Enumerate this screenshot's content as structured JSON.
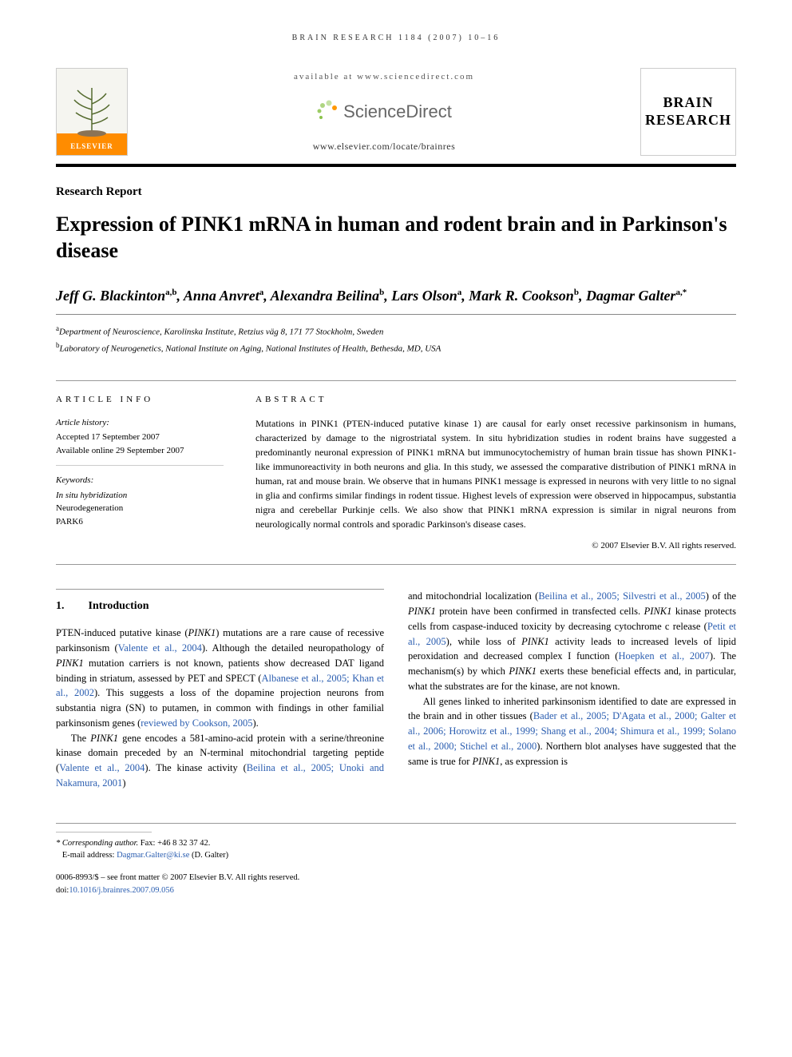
{
  "running_head": "BRAIN RESEARCH 1184 (2007) 10–16",
  "header": {
    "publisher_name": "ELSEVIER",
    "available_at": "available at www.sciencedirect.com",
    "sciencedirect_label": "ScienceDirect",
    "journal_url": "www.elsevier.com/locate/brainres",
    "journal_logo_line1": "BRAIN",
    "journal_logo_line2": "RESEARCH"
  },
  "article": {
    "type": "Research Report",
    "title": "Expression of PINK1 mRNA in human and rodent brain and in Parkinson's disease",
    "authors_html": "Jeff G. Blackinton<sup>a,b</sup>, Anna Anvret<sup>a</sup>, Alexandra Beilina<sup>b</sup>, Lars Olson<sup>a</sup>, Mark R. Cookson<sup>b</sup>, Dagmar Galter<sup>a,*</sup>",
    "affiliations": [
      {
        "sup": "a",
        "text": "Department of Neuroscience, Karolinska Institute, Retzius väg 8, 171 77 Stockholm, Sweden"
      },
      {
        "sup": "b",
        "text": "Laboratory of Neurogenetics, National Institute on Aging, National Institutes of Health, Bethesda, MD, USA"
      }
    ]
  },
  "article_info": {
    "heading": "ARTICLE INFO",
    "history_label": "Article history:",
    "accepted": "Accepted 17 September 2007",
    "available_online": "Available online 29 September 2007",
    "keywords_label": "Keywords:",
    "keywords": [
      "In situ hybridization",
      "Neurodegeneration",
      "PARK6"
    ]
  },
  "abstract": {
    "heading": "ABSTRACT",
    "text": "Mutations in PINK1 (PTEN-induced putative kinase 1) are causal for early onset recessive parkinsonism in humans, characterized by damage to the nigrostriatal system. In situ hybridization studies in rodent brains have suggested a predominantly neuronal expression of PINK1 mRNA but immunocytochemistry of human brain tissue has shown PINK1-like immunoreactivity in both neurons and glia. In this study, we assessed the comparative distribution of PINK1 mRNA in human, rat and mouse brain. We observe that in humans PINK1 message is expressed in neurons with very little to no signal in glia and confirms similar findings in rodent tissue. Highest levels of expression were observed in hippocampus, substantia nigra and cerebellar Purkinje cells. We also show that PINK1 mRNA expression is similar in nigral neurons from neurologically normal controls and sporadic Parkinson's disease cases.",
    "copyright": "© 2007 Elsevier B.V. All rights reserved."
  },
  "sections": {
    "intro_number": "1.",
    "intro_title": "Introduction",
    "col1_p1": "PTEN-induced putative kinase (PINK1) mutations are a rare cause of recessive parkinsonism (Valente et al., 2004). Although the detailed neuropathology of PINK1 mutation carriers is not known, patients show decreased DAT ligand binding in striatum, assessed by PET and SPECT (Albanese et al., 2005; Khan et al., 2002). This suggests a loss of the dopamine projection neurons from substantia nigra (SN) to putamen, in common with findings in other familial parkinsonism genes (reviewed by Cookson, 2005).",
    "col1_p2": "The PINK1 gene encodes a 581-amino-acid protein with a serine/threonine kinase domain preceded by an N-terminal mitochondrial targeting peptide (Valente et al., 2004). The kinase activity (Beilina et al., 2005; Unoki and Nakamura, 2001)",
    "col2_p1": "and mitochondrial localization (Beilina et al., 2005; Silvestri et al., 2005) of the PINK1 protein have been confirmed in transfected cells. PINK1 kinase protects cells from caspase-induced toxicity by decreasing cytochrome c release (Petit et al., 2005), while loss of PINK1 activity leads to increased levels of lipid peroxidation and decreased complex I function (Hoepken et al., 2007). The mechanism(s) by which PINK1 exerts these beneficial effects and, in particular, what the substrates are for the kinase, are not known.",
    "col2_p2": "All genes linked to inherited parkinsonism identified to date are expressed in the brain and in other tissues (Bader et al., 2005; D'Agata et al., 2000; Galter et al., 2006; Horowitz et al., 1999; Shang et al., 2004; Shimura et al., 1999; Solano et al., 2000; Stichel et al., 2000). Northern blot analyses have suggested that the same is true for PINK1, as expression is"
  },
  "footer": {
    "corresponding_label": "* Corresponding author.",
    "fax": "Fax: +46 8 32 37 42.",
    "email_label": "E-mail address:",
    "email": "Dagmar.Galter@ki.se",
    "email_suffix": "(D. Galter)",
    "front_matter": "0006-8993/$ – see front matter © 2007 Elsevier B.V. All rights reserved.",
    "doi_label": "doi:",
    "doi": "10.1016/j.brainres.2007.09.056"
  },
  "colors": {
    "link": "#2a5db0",
    "elsevier_orange": "#ff8c00",
    "sd_green": "#8bc34a",
    "text": "#000000",
    "rule": "#999999"
  }
}
